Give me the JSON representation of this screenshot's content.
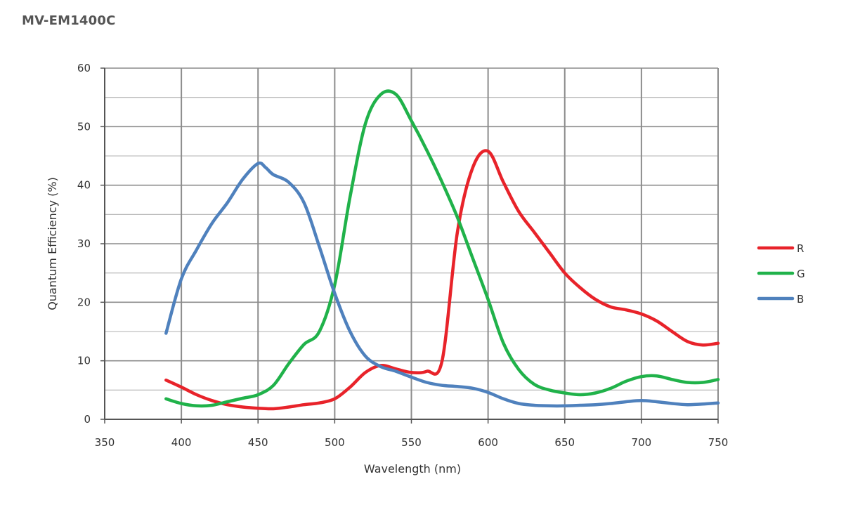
{
  "title": "MV-EM1400C",
  "colors": {
    "R": "#e8232a",
    "G": "#20b24a",
    "B": "#4f81bd",
    "grid": "#8c8c8c",
    "axis": "#555555"
  },
  "chart_data": {
    "type": "line",
    "title": "MV-EM1400C",
    "xlabel": "Wavelength (nm)",
    "ylabel": "Quantum Efficiency (%)",
    "xlim": [
      350,
      750
    ],
    "ylim": [
      0,
      60
    ],
    "xticks": [
      350,
      400,
      450,
      500,
      550,
      600,
      650,
      700,
      750
    ],
    "yticks": [
      0,
      10,
      20,
      30,
      40,
      50,
      60
    ],
    "grid": true,
    "legend_position": "right",
    "series": [
      {
        "name": "R",
        "color": "#e8232a",
        "x": [
          390,
          400,
          410,
          420,
          430,
          440,
          450,
          460,
          470,
          480,
          490,
          500,
          510,
          520,
          530,
          540,
          550,
          560,
          570,
          580,
          590,
          600,
          610,
          620,
          630,
          640,
          650,
          660,
          670,
          680,
          690,
          700,
          710,
          720,
          730,
          740,
          750
        ],
        "y": [
          6.7,
          5.5,
          4.2,
          3.2,
          2.5,
          2.1,
          1.9,
          1.8,
          2.1,
          2.5,
          2.8,
          3.5,
          5.5,
          8.0,
          9.2,
          8.6,
          8.0,
          8.2,
          10.0,
          32.0,
          43.0,
          45.8,
          40.5,
          35.5,
          32.0,
          28.5,
          25.0,
          22.5,
          20.5,
          19.2,
          18.7,
          18.0,
          16.8,
          15.0,
          13.3,
          12.7,
          13.0
        ]
      },
      {
        "name": "G",
        "color": "#20b24a",
        "x": [
          390,
          400,
          410,
          420,
          430,
          440,
          450,
          460,
          470,
          480,
          490,
          500,
          510,
          520,
          530,
          540,
          550,
          560,
          570,
          580,
          590,
          600,
          610,
          620,
          630,
          640,
          650,
          660,
          670,
          680,
          690,
          700,
          710,
          720,
          730,
          740,
          750
        ],
        "y": [
          3.5,
          2.7,
          2.3,
          2.4,
          3.0,
          3.6,
          4.2,
          5.8,
          9.5,
          12.8,
          15.0,
          23.0,
          38.0,
          50.5,
          55.5,
          55.5,
          51.0,
          46.0,
          40.5,
          34.5,
          27.5,
          20.5,
          13.0,
          8.5,
          6.0,
          5.0,
          4.5,
          4.2,
          4.5,
          5.3,
          6.5,
          7.3,
          7.4,
          6.8,
          6.3,
          6.3,
          6.8
        ]
      },
      {
        "name": "B",
        "color": "#4f81bd",
        "x": [
          390,
          400,
          410,
          420,
          430,
          440,
          450,
          455,
          460,
          470,
          480,
          490,
          500,
          510,
          520,
          530,
          540,
          550,
          560,
          570,
          580,
          590,
          600,
          610,
          620,
          630,
          640,
          650,
          660,
          670,
          680,
          690,
          700,
          710,
          720,
          730,
          740,
          750
        ],
        "y": [
          14.7,
          24.0,
          29.0,
          33.5,
          37.0,
          41.0,
          43.7,
          43.0,
          41.8,
          40.5,
          37.0,
          29.5,
          21.5,
          15.0,
          10.8,
          9.0,
          8.2,
          7.2,
          6.3,
          5.8,
          5.6,
          5.3,
          4.6,
          3.5,
          2.7,
          2.4,
          2.3,
          2.3,
          2.4,
          2.5,
          2.7,
          3.0,
          3.2,
          3.0,
          2.7,
          2.5,
          2.6,
          2.8
        ]
      }
    ]
  }
}
